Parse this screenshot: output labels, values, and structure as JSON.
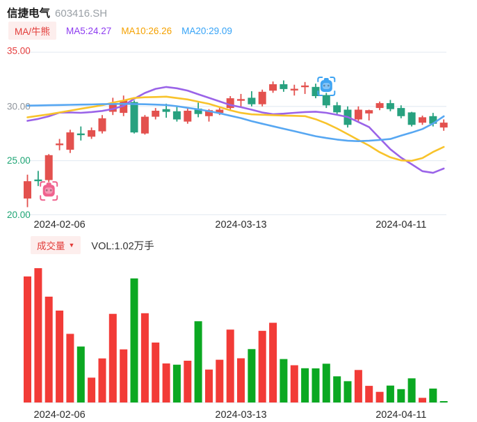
{
  "app": {
    "title": "信捷电气",
    "code": "603416.SH"
  },
  "legend": {
    "indicator": "MA/牛熊",
    "ma5": {
      "label": "MA5:24.27",
      "color": "#8d3bf0"
    },
    "ma10": {
      "label": "MA10:26.26",
      "color": "#f5a100"
    },
    "ma20": {
      "label": "MA20:29.09",
      "color": "#36a3f7"
    }
  },
  "volume_header": {
    "selector": "成交量",
    "caret": "▼",
    "value": "VOL:1.02万手"
  },
  "colors": {
    "candle_up": "#e3514e",
    "candle_down": "#27a17f",
    "vol_up": "#f23b37",
    "vol_down": "#0ba822",
    "grid": "#e7eef4",
    "axis_date": "#2b2b2b",
    "ma5_line": "#9a63e8",
    "ma10_line": "#f8c32b",
    "ma20_line": "#57a7f2",
    "bear_marker": "#f0628e",
    "bull_marker": "#3fa4f2"
  },
  "chart_data": [
    {
      "type": "candlestick",
      "title": "信捷电气 603416.SH daily price",
      "ylim": [
        19.5,
        35.9
      ],
      "y_ticks": [
        {
          "v": 35,
          "label": "35.00",
          "color": "#e53e3e"
        },
        {
          "v": 30,
          "label": "30.00",
          "color": "#8f959c"
        },
        {
          "v": 25,
          "label": "25.00",
          "color": "#1ea574"
        },
        {
          "v": 20,
          "label": "20.00",
          "color": "#1ea574"
        }
      ],
      "x_labels": [
        {
          "label": "2024-02-06",
          "index": 3
        },
        {
          "label": "2024-03-13",
          "index": 20
        },
        {
          "label": "2024-04-11",
          "index": 35
        }
      ],
      "candle_format": [
        "open",
        "close",
        "high",
        "low",
        "direction(u=up/red,d=down/green)"
      ],
      "candles": [
        [
          21.5,
          23.1,
          23.7,
          20.7,
          "u"
        ],
        [
          23.25,
          23.1,
          24.05,
          22.65,
          "d"
        ],
        [
          23.2,
          25.5,
          25.6,
          23.0,
          "u"
        ],
        [
          26.45,
          26.55,
          27.0,
          25.95,
          "u"
        ],
        [
          26.0,
          27.6,
          27.85,
          25.7,
          "u"
        ],
        [
          27.5,
          27.35,
          28.15,
          26.85,
          "d"
        ],
        [
          27.2,
          27.8,
          28.05,
          27.0,
          "u"
        ],
        [
          27.7,
          28.9,
          29.2,
          27.5,
          "u"
        ],
        [
          29.5,
          30.3,
          30.8,
          29.2,
          "u"
        ],
        [
          29.4,
          30.55,
          31.0,
          29.1,
          "u"
        ],
        [
          30.4,
          27.6,
          30.55,
          27.5,
          "d"
        ],
        [
          27.5,
          29.05,
          29.2,
          27.4,
          "u"
        ],
        [
          29.05,
          29.6,
          29.85,
          28.8,
          "u"
        ],
        [
          29.75,
          29.5,
          30.25,
          28.95,
          "d"
        ],
        [
          29.55,
          28.8,
          30.0,
          28.6,
          "d"
        ],
        [
          28.6,
          29.6,
          29.8,
          28.4,
          "u"
        ],
        [
          29.8,
          29.3,
          30.35,
          29.0,
          "d"
        ],
        [
          29.1,
          29.65,
          29.75,
          28.6,
          "u"
        ],
        [
          29.4,
          29.7,
          29.85,
          29.2,
          "u"
        ],
        [
          29.85,
          30.75,
          30.95,
          29.65,
          "u"
        ],
        [
          30.55,
          30.65,
          31.15,
          29.9,
          "u"
        ],
        [
          30.8,
          30.2,
          31.4,
          30.0,
          "d"
        ],
        [
          30.2,
          31.35,
          31.55,
          30.0,
          "u"
        ],
        [
          31.45,
          32.05,
          32.3,
          31.25,
          "u"
        ],
        [
          32.05,
          31.6,
          32.4,
          31.35,
          "d"
        ],
        [
          31.5,
          31.6,
          32.0,
          31.0,
          "u"
        ],
        [
          31.8,
          31.9,
          32.25,
          31.15,
          "u"
        ],
        [
          31.8,
          30.95,
          32.1,
          30.75,
          "d"
        ],
        [
          31.05,
          30.1,
          31.25,
          29.85,
          "d"
        ],
        [
          30.1,
          29.45,
          30.4,
          29.2,
          "d"
        ],
        [
          29.7,
          28.3,
          30.0,
          28.05,
          "d"
        ],
        [
          28.8,
          29.7,
          30.0,
          28.6,
          "u"
        ],
        [
          29.35,
          29.65,
          29.7,
          28.7,
          "u"
        ],
        [
          29.85,
          30.3,
          30.45,
          29.65,
          "u"
        ],
        [
          30.3,
          29.75,
          30.6,
          29.55,
          "d"
        ],
        [
          29.85,
          29.1,
          30.1,
          28.9,
          "d"
        ],
        [
          29.45,
          28.3,
          29.5,
          28.15,
          "d"
        ],
        [
          28.5,
          29.0,
          29.15,
          28.3,
          "u"
        ],
        [
          29.1,
          28.4,
          29.4,
          28.15,
          "d"
        ],
        [
          28.05,
          28.5,
          28.8,
          27.75,
          "u"
        ]
      ],
      "ma_series": [
        {
          "name": "MA5",
          "color": "#9a63e8",
          "values": [
            28.67,
            28.84,
            29.09,
            29.43,
            29.44,
            29.41,
            29.48,
            29.58,
            29.76,
            30.05,
            30.71,
            31.24,
            31.62,
            31.79,
            31.67,
            31.46,
            31.12,
            30.79,
            30.46,
            30.13,
            29.93,
            29.7,
            29.44,
            29.28,
            29.33,
            29.41,
            29.48,
            29.51,
            29.41,
            29.22,
            29.02,
            28.56,
            28.1,
            27.06,
            26.05,
            25.27,
            24.66,
            24.02,
            23.87,
            24.27
          ]
        },
        {
          "name": "MA10",
          "color": "#f8c32b",
          "values": [
            28.99,
            29.13,
            29.27,
            29.44,
            29.61,
            29.78,
            29.94,
            30.11,
            30.35,
            30.54,
            30.78,
            30.84,
            30.87,
            30.9,
            30.77,
            30.64,
            30.44,
            30.24,
            29.94,
            29.64,
            29.4,
            29.27,
            29.23,
            29.19,
            29.16,
            29.13,
            29.1,
            28.82,
            28.43,
            27.96,
            27.44,
            26.9,
            26.39,
            25.77,
            25.3,
            25.02,
            24.98,
            25.23,
            25.8,
            26.26
          ]
        },
        {
          "name": "MA20",
          "color": "#57a7f2",
          "values": [
            30.07,
            30.09,
            30.11,
            30.13,
            30.15,
            30.17,
            30.18,
            30.21,
            30.22,
            30.24,
            30.22,
            30.2,
            30.17,
            30.13,
            30.02,
            29.87,
            29.73,
            29.56,
            29.37,
            29.14,
            28.92,
            28.64,
            28.4,
            28.17,
            27.94,
            27.71,
            27.48,
            27.25,
            27.08,
            26.94,
            26.83,
            26.79,
            26.83,
            26.9,
            26.99,
            27.3,
            27.59,
            27.91,
            28.42,
            29.09
          ]
        }
      ],
      "markers": [
        {
          "type": "bear-marker",
          "index": 2,
          "price": 22.2,
          "color": "#f0628e"
        },
        {
          "type": "bull-marker",
          "index": 28,
          "price": 31.85,
          "color": "#3fa4f2"
        }
      ]
    },
    {
      "type": "bar",
      "title": "成交量 volume",
      "unit": "万手",
      "latest_label": "VOL:1.02万手",
      "x_labels": [
        {
          "label": "2024-02-06",
          "index": 3
        },
        {
          "label": "2024-03-13",
          "index": 20
        },
        {
          "label": "2024-04-11",
          "index": 35
        }
      ],
      "values": [
        92.3,
        98.4,
        77.5,
        67.3,
        50.3,
        41.0,
        18.2,
        32.3,
        64.9,
        38.9,
        90.9,
        65.4,
        43.9,
        28.6,
        27.7,
        30.6,
        59.5,
        24.1,
        31.3,
        53.4,
        32.4,
        39.1,
        52.5,
        58.4,
        31.8,
        27.3,
        25.1,
        25.0,
        28.4,
        19.2,
        15.6,
        23.8,
        12.2,
        7.8,
        12.4,
        9.8,
        17.7,
        3.4,
        10.2,
        1.02
      ],
      "directions": [
        "u",
        "u",
        "u",
        "u",
        "u",
        "d",
        "u",
        "u",
        "u",
        "u",
        "d",
        "u",
        "u",
        "u",
        "d",
        "u",
        "d",
        "u",
        "u",
        "u",
        "u",
        "d",
        "u",
        "u",
        "d",
        "u",
        "d",
        "d",
        "d",
        "d",
        "d",
        "u",
        "u",
        "u",
        "d",
        "d",
        "d",
        "u",
        "d",
        "d"
      ]
    }
  ]
}
